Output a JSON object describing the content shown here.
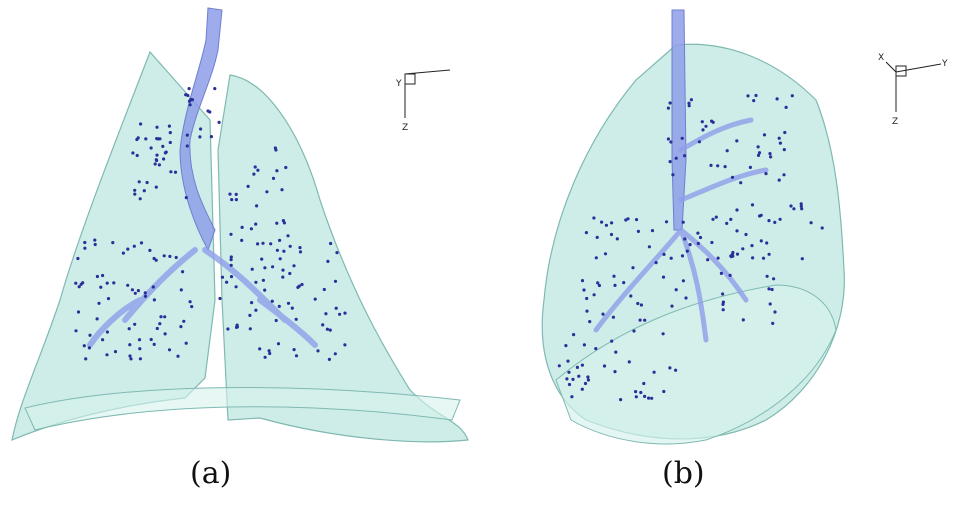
{
  "figure": {
    "panels": [
      {
        "caption": "(a)",
        "triad": {
          "labels": [
            "Y",
            "Z"
          ]
        }
      },
      {
        "caption": "(b)",
        "triad": {
          "labels": [
            "X",
            "Y",
            "Z"
          ]
        }
      }
    ],
    "colors": {
      "lung_fill": "#bfe7e0",
      "lung_edge": "#7fb9b2",
      "airway": "#8e9ee8",
      "particles": "#2b2f9a"
    }
  }
}
